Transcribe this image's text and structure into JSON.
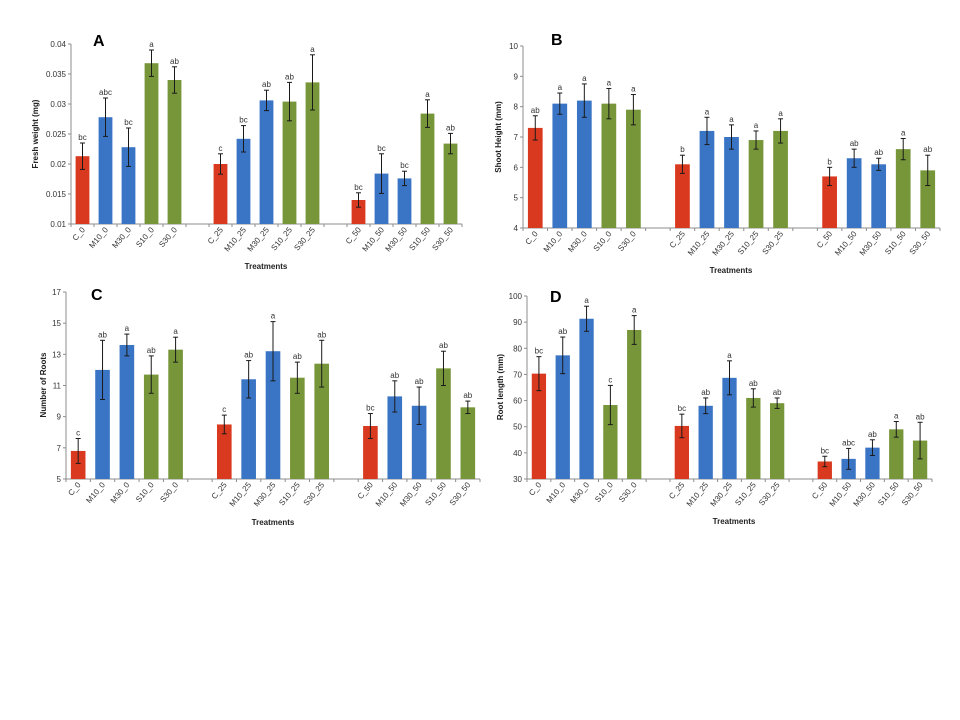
{
  "colors": {
    "control": "#d9391f",
    "m": "#3a74c4",
    "s": "#77963a",
    "err": "#1a1a1a",
    "axis": "#8c8c8c"
  },
  "chart_data": [
    {
      "type": "bar",
      "panel_label": "A",
      "xlabel": "Treatments",
      "ylabel": "Fresh weight (mg)",
      "ylim": [
        0.01,
        0.04
      ],
      "yticks": [
        0.01,
        0.015,
        0.02,
        0.025,
        0.03,
        0.035,
        0.04
      ],
      "ytick_labels": [
        "0.01",
        "0.015",
        "0.02",
        "0.025",
        "0.03",
        "0.035",
        "0.04"
      ],
      "categories": [
        "C_0",
        "M10_0",
        "M30_0",
        "S10_0",
        "S30_0",
        "C_25",
        "M10_25",
        "M30_25",
        "S10_25",
        "S30_25",
        "C_50",
        "M10_50",
        "M30_50",
        "S10_50",
        "S30_50"
      ],
      "values": [
        0.0213,
        0.0278,
        0.0228,
        0.0368,
        0.034,
        0.02,
        0.0242,
        0.0306,
        0.0304,
        0.0336,
        0.014,
        0.0184,
        0.0176,
        0.0284,
        0.0234
      ],
      "errors": [
        0.0022,
        0.0032,
        0.0032,
        0.0022,
        0.0022,
        0.0017,
        0.0022,
        0.0017,
        0.0032,
        0.0046,
        0.0012,
        0.0033,
        0.0012,
        0.0023,
        0.0017
      ],
      "letters": [
        "bc",
        "abc",
        "bc",
        "a",
        "ab",
        "c",
        "bc",
        "ab",
        "ab",
        "a",
        "bc",
        "bc",
        "bc",
        "a",
        "ab"
      ]
    },
    {
      "type": "bar",
      "panel_label": "B",
      "xlabel": "Treatments",
      "ylabel": "Shoot Height (mm)",
      "ylim": [
        4,
        10
      ],
      "yticks": [
        4,
        5,
        6,
        7,
        8,
        9,
        10
      ],
      "ytick_labels": [
        "4",
        "5",
        "6",
        "7",
        "8",
        "9",
        "10"
      ],
      "categories": [
        "C_0",
        "M10_0",
        "M30_0",
        "S10_0",
        "S30_0",
        "C_25",
        "M10_25",
        "M30_25",
        "S10_25",
        "S30_25",
        "C_50",
        "M10_50",
        "M30_50",
        "S10_50",
        "S30_50"
      ],
      "values": [
        7.3,
        8.1,
        8.2,
        8.1,
        7.9,
        6.1,
        7.2,
        7.0,
        6.9,
        7.2,
        5.7,
        6.3,
        6.1,
        6.6,
        5.9
      ],
      "errors": [
        0.4,
        0.35,
        0.55,
        0.5,
        0.5,
        0.3,
        0.45,
        0.4,
        0.3,
        0.4,
        0.3,
        0.3,
        0.2,
        0.35,
        0.5
      ],
      "letters": [
        "ab",
        "a",
        "a",
        "a",
        "a",
        "b",
        "a",
        "a",
        "a",
        "a",
        "b",
        "ab",
        "ab",
        "a",
        "ab"
      ]
    },
    {
      "type": "bar",
      "panel_label": "C",
      "xlabel": "Treatments",
      "ylabel": "Number of Roots",
      "ylim": [
        5,
        17
      ],
      "yticks": [
        5,
        7,
        9,
        11,
        13,
        15,
        17
      ],
      "ytick_labels": [
        "5",
        "7",
        "9",
        "11",
        "13",
        "15",
        "17"
      ],
      "categories": [
        "C_0",
        "M10_0",
        "M30_0",
        "S10_0",
        "S30_0",
        "C_25",
        "M10_25",
        "M30_25",
        "S10_25",
        "S30_25",
        "C_50",
        "M10_50",
        "M30_50",
        "S10_50",
        "S30_50"
      ],
      "values": [
        6.8,
        12.0,
        13.6,
        11.7,
        13.3,
        8.5,
        11.4,
        13.2,
        11.5,
        12.4,
        8.4,
        10.3,
        9.7,
        12.1,
        9.6
      ],
      "errors": [
        0.8,
        1.9,
        0.7,
        1.2,
        0.8,
        0.6,
        1.2,
        1.9,
        1.0,
        1.5,
        0.8,
        1.0,
        1.2,
        1.1,
        0.4
      ],
      "letters": [
        "c",
        "ab",
        "a",
        "ab",
        "a",
        "c",
        "ab",
        "a",
        "ab",
        "ab",
        "bc",
        "ab",
        "ab",
        "ab",
        "ab"
      ]
    },
    {
      "type": "bar",
      "panel_label": "D",
      "xlabel": "Treatments",
      "ylabel": "Root length (mm)",
      "ylim": [
        30,
        100
      ],
      "yticks": [
        30,
        40,
        50,
        60,
        70,
        80,
        90,
        100
      ],
      "ytick_labels": [
        "30",
        "40",
        "50",
        "60",
        "70",
        "80",
        "90",
        "100"
      ],
      "categories": [
        "C_0",
        "M10_0",
        "M30_0",
        "S10_0",
        "S30_0",
        "C_25",
        "M10_25",
        "M30_25",
        "S10_25",
        "S30_25",
        "C_50",
        "M10_50",
        "M30_50",
        "S10_50",
        "S30_50"
      ],
      "values": [
        70.3,
        77.3,
        91.3,
        58.3,
        87.0,
        50.3,
        58.0,
        68.7,
        61.0,
        59.0,
        36.7,
        37.7,
        42.0,
        49.0,
        44.7
      ],
      "errors": [
        6.5,
        7.0,
        4.8,
        7.5,
        5.5,
        4.5,
        3.0,
        6.5,
        3.5,
        2.0,
        2.0,
        4.0,
        3.0,
        3.0,
        7.0
      ],
      "letters": [
        "bc",
        "ab",
        "a",
        "c",
        "a",
        "bc",
        "ab",
        "a",
        "ab",
        "ab",
        "bc",
        "abc",
        "ab",
        "a",
        "ab"
      ]
    }
  ]
}
